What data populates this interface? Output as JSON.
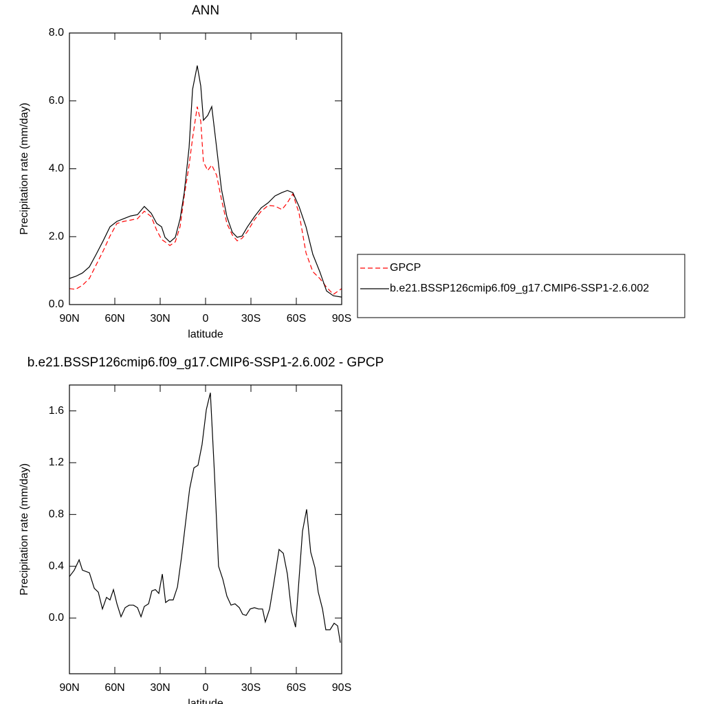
{
  "chart_data": [
    {
      "type": "line",
      "title": "ANN",
      "xlabel": "latitude",
      "ylabel": "Precipitation rate (mm/day)",
      "x": [
        90,
        85.9,
        81.4,
        76.8,
        72.3,
        67.7,
        63.2,
        58.6,
        54.1,
        49.5,
        45.0,
        40.5,
        35.9,
        32.3,
        29.1,
        26.8,
        23.6,
        20.0,
        16.8,
        14.1,
        10.9,
        8.6,
        5.5,
        3.2,
        1.4,
        -1.4,
        -4.1,
        -7.3,
        -10.5,
        -14.1,
        -17.7,
        -20.9,
        -24.1,
        -27.7,
        -32.3,
        -36.8,
        -41.4,
        -45.9,
        -50.5,
        -54.1,
        -57.7,
        -61.8,
        -66.4,
        -70.9,
        -75.5,
        -80.0,
        -84.5,
        -90
      ],
      "series": [
        {
          "name": "GPCP",
          "color": "#ff0000",
          "dashed": true,
          "values": [
            0.47,
            0.45,
            0.57,
            0.77,
            1.17,
            1.58,
            2.02,
            2.39,
            2.45,
            2.49,
            2.53,
            2.75,
            2.59,
            2.19,
            1.92,
            1.85,
            1.74,
            1.85,
            2.3,
            3.2,
            4.1,
            4.9,
            5.83,
            5.4,
            4.2,
            3.95,
            4.11,
            3.81,
            3.1,
            2.39,
            2.05,
            1.88,
            1.95,
            2.15,
            2.5,
            2.75,
            2.92,
            2.9,
            2.8,
            3.0,
            3.26,
            2.69,
            1.52,
            0.97,
            0.77,
            0.51,
            0.3,
            0.47
          ]
        },
        {
          "name": "b.e21.BSSP126cmip6.f09_g17.CMIP6-SSP1-2.6.002",
          "color": "#000000",
          "dashed": false,
          "values": [
            0.77,
            0.83,
            0.93,
            1.11,
            1.48,
            1.88,
            2.29,
            2.45,
            2.53,
            2.61,
            2.65,
            2.89,
            2.69,
            2.39,
            2.29,
            1.98,
            1.84,
            1.98,
            2.53,
            3.3,
            4.62,
            6.34,
            7.04,
            6.44,
            5.43,
            5.57,
            5.83,
            4.62,
            3.4,
            2.59,
            2.13,
            1.98,
            2.02,
            2.29,
            2.59,
            2.85,
            3.0,
            3.2,
            3.3,
            3.36,
            3.3,
            2.89,
            2.29,
            1.48,
            0.97,
            0.4,
            0.26,
            0.22
          ]
        }
      ],
      "xlim": [
        90,
        -90
      ],
      "xticks": [
        {
          "value": 90,
          "label": "90N"
        },
        {
          "value": 60,
          "label": "60N"
        },
        {
          "value": 30,
          "label": "30N"
        },
        0,
        {
          "value": -30,
          "label": "30S"
        },
        {
          "value": -60,
          "label": "60S"
        },
        {
          "value": -90,
          "label": "90S"
        }
      ],
      "ylim": [
        0,
        8
      ],
      "yticks": [
        {
          "value": 0,
          "label": "0.0"
        },
        {
          "value": 2,
          "label": "2.0"
        },
        {
          "value": 4,
          "label": "4.0"
        },
        {
          "value": 6,
          "label": "6.0"
        },
        {
          "value": 8,
          "label": "8.0"
        }
      ],
      "legend": "right"
    },
    {
      "type": "line",
      "title": "b.e21.BSSP126cmip6.f09_g17.CMIP6-SSP1-2.6.002 - GPCP",
      "xlabel": "latitude",
      "ylabel": "Precipitation rate (mm/day)",
      "x": [
        90,
        86.8,
        83.6,
        81.4,
        76.8,
        73.6,
        70.9,
        68.2,
        65.5,
        63.2,
        60.9,
        58.6,
        55.9,
        53.2,
        50.5,
        47.7,
        45.0,
        42.7,
        40.5,
        37.7,
        35.5,
        33.2,
        30.9,
        28.6,
        26.4,
        24.1,
        21.4,
        18.6,
        15.9,
        13.2,
        10.5,
        7.7,
        5.0,
        2.3,
        -0.5,
        -3.2,
        -5.9,
        -8.6,
        -11.4,
        -14.1,
        -16.8,
        -19.5,
        -22.3,
        -24.5,
        -26.8,
        -29.5,
        -32.3,
        -35.0,
        -37.7,
        -39.5,
        -42.3,
        -45.0,
        -48.6,
        -51.4,
        -54.1,
        -56.8,
        -59.5,
        -64.1,
        -66.8,
        -69.5,
        -72.3,
        -74.5,
        -77.3,
        -79.5,
        -82.3,
        -85.0,
        -87.3,
        -89.1
      ],
      "series": [
        {
          "color": "#000000",
          "dashed": false,
          "values": [
            0.32,
            0.37,
            0.45,
            0.37,
            0.35,
            0.23,
            0.2,
            0.07,
            0.16,
            0.14,
            0.22,
            0.11,
            0.01,
            0.08,
            0.1,
            0.1,
            0.08,
            0.01,
            0.09,
            0.11,
            0.21,
            0.22,
            0.19,
            0.34,
            0.12,
            0.14,
            0.14,
            0.24,
            0.47,
            0.74,
            1.0,
            1.16,
            1.18,
            1.34,
            1.61,
            1.74,
            1.11,
            0.4,
            0.3,
            0.17,
            0.1,
            0.11,
            0.08,
            0.03,
            0.02,
            0.07,
            0.08,
            0.07,
            0.07,
            -0.03,
            0.07,
            0.26,
            0.53,
            0.5,
            0.34,
            0.05,
            -0.07,
            0.67,
            0.84,
            0.51,
            0.39,
            0.2,
            0.07,
            -0.09,
            -0.09,
            -0.04,
            -0.06,
            -0.19
          ]
        }
      ],
      "xlim": [
        90,
        -90
      ],
      "xticks": [
        {
          "value": 90,
          "label": "90N"
        },
        {
          "value": 60,
          "label": "60N"
        },
        {
          "value": 30,
          "label": "30N"
        },
        0,
        {
          "value": -30,
          "label": "30S"
        },
        {
          "value": -60,
          "label": "60S"
        },
        {
          "value": -90,
          "label": "90S"
        }
      ],
      "ylim": [
        -0.43,
        1.8
      ],
      "yticks": [
        {
          "value": 0,
          "label": "0.0"
        },
        0.4,
        0.8,
        1.2,
        1.6
      ]
    }
  ]
}
